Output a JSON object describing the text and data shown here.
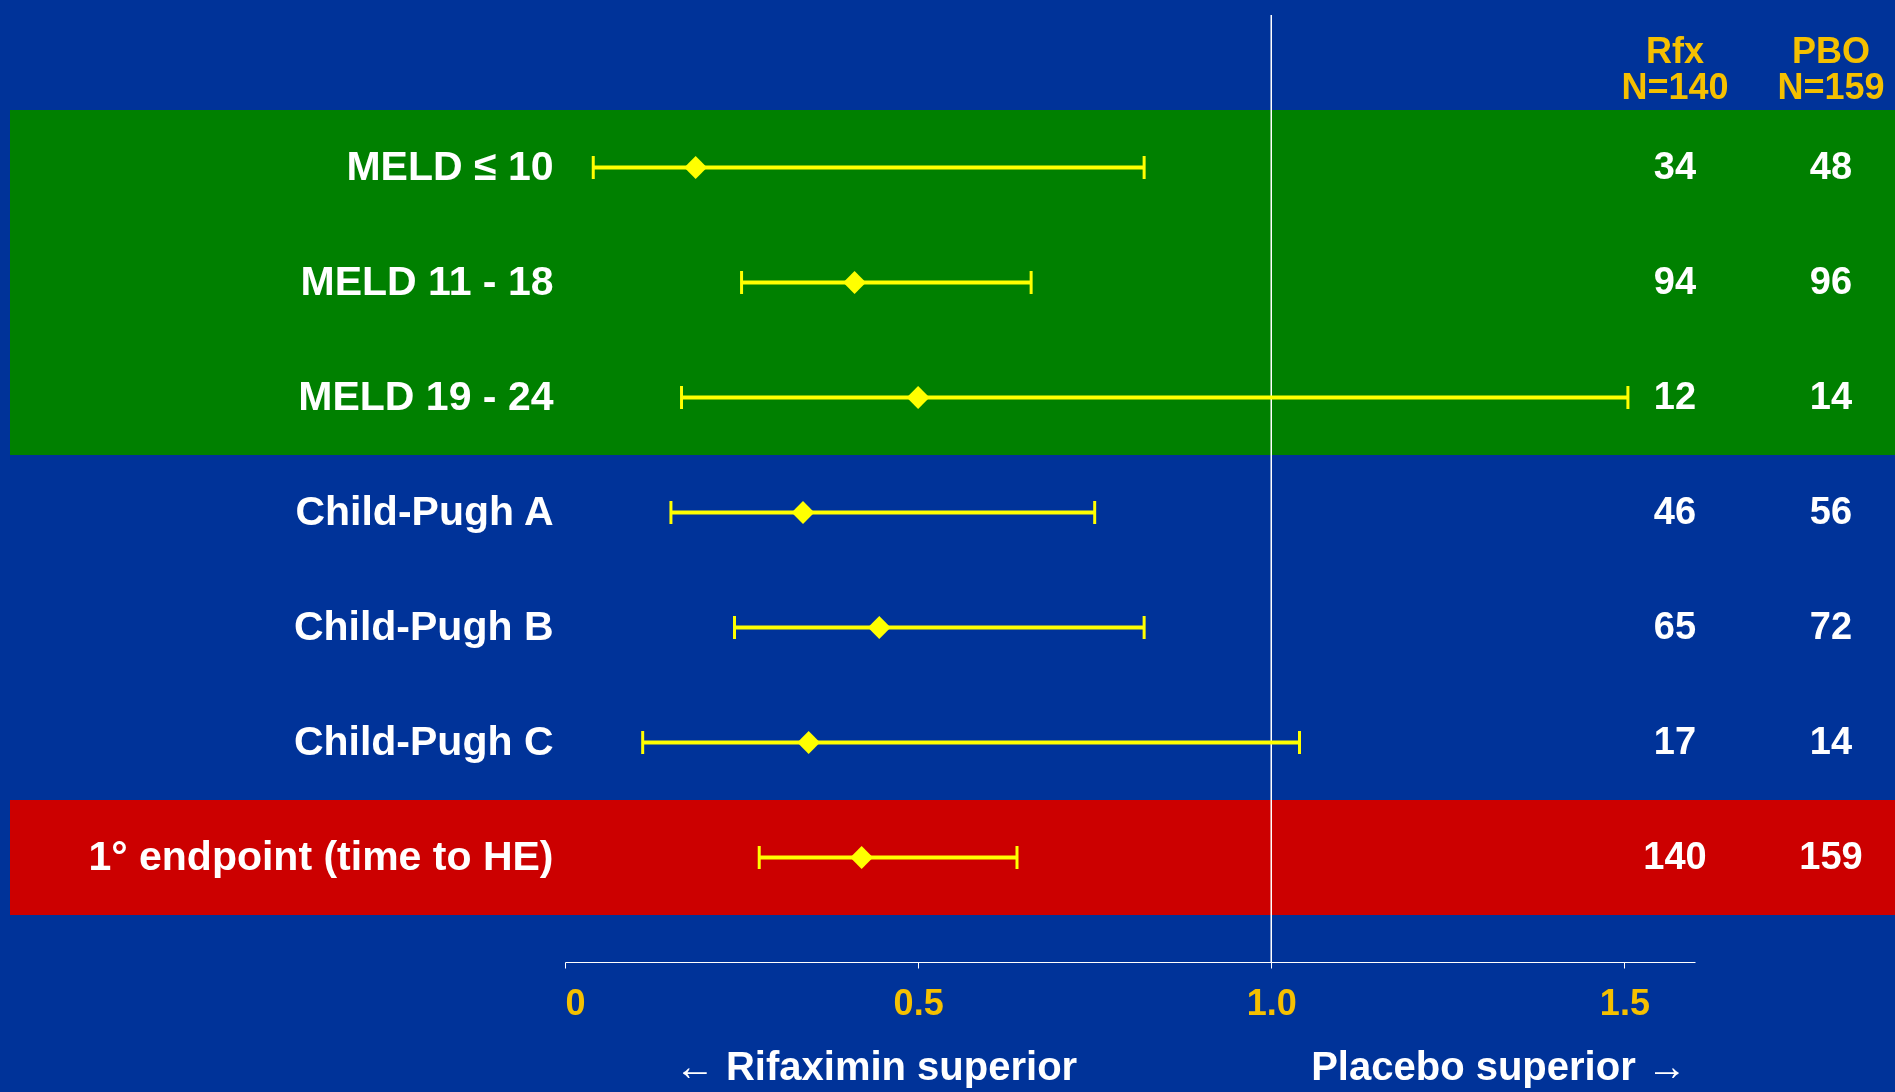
{
  "chart_data": {
    "type": "scatter",
    "orientation": "horizontal",
    "categories": [
      "MELD ≤ 10",
      "MELD 11 - 18",
      "MELD 19 - 24",
      "Child-Pugh A",
      "Child-Pugh B",
      "Child-Pugh C",
      "1° endpoint (time to HE)"
    ],
    "values": [
      0.185,
      0.41,
      0.5,
      0.337,
      0.445,
      0.345,
      0.42
    ],
    "errors": [
      [
        0.04,
        0.82
      ],
      [
        0.25,
        0.66
      ],
      [
        0.165,
        1.505
      ],
      [
        0.15,
        0.75
      ],
      [
        0.24,
        0.82
      ],
      [
        0.11,
        1.04
      ],
      [
        0.275,
        0.64
      ]
    ],
    "color": "#ffff00",
    "marker": "diamond",
    "xlim": [
      0,
      1.6
    ],
    "xticks": [
      0,
      0.5,
      {
        "value": 1,
        "label": "1.0"
      },
      1.5
    ],
    "ref_lines": [
      {
        "axis": "x",
        "value": 1,
        "color": "#ffffff"
      }
    ],
    "bands": [
      {
        "axis": "y",
        "from": "MELD ≤ 10",
        "to": "MELD 19 - 24",
        "color": "#008000"
      },
      {
        "axis": "y",
        "from": "1° endpoint (time to HE)",
        "to": "1° endpoint (time to HE)",
        "color": "#cc0000"
      }
    ],
    "annotations": [
      "Rfx\nN=140",
      "PBO\nN=159",
      "34",
      "48",
      "94",
      "96",
      "12",
      "14",
      "46",
      "56",
      "65",
      "72",
      "17",
      "14",
      "140",
      "159",
      "← Rifaximin superior",
      "Placebo superior →"
    ],
    "grid": false
  }
}
